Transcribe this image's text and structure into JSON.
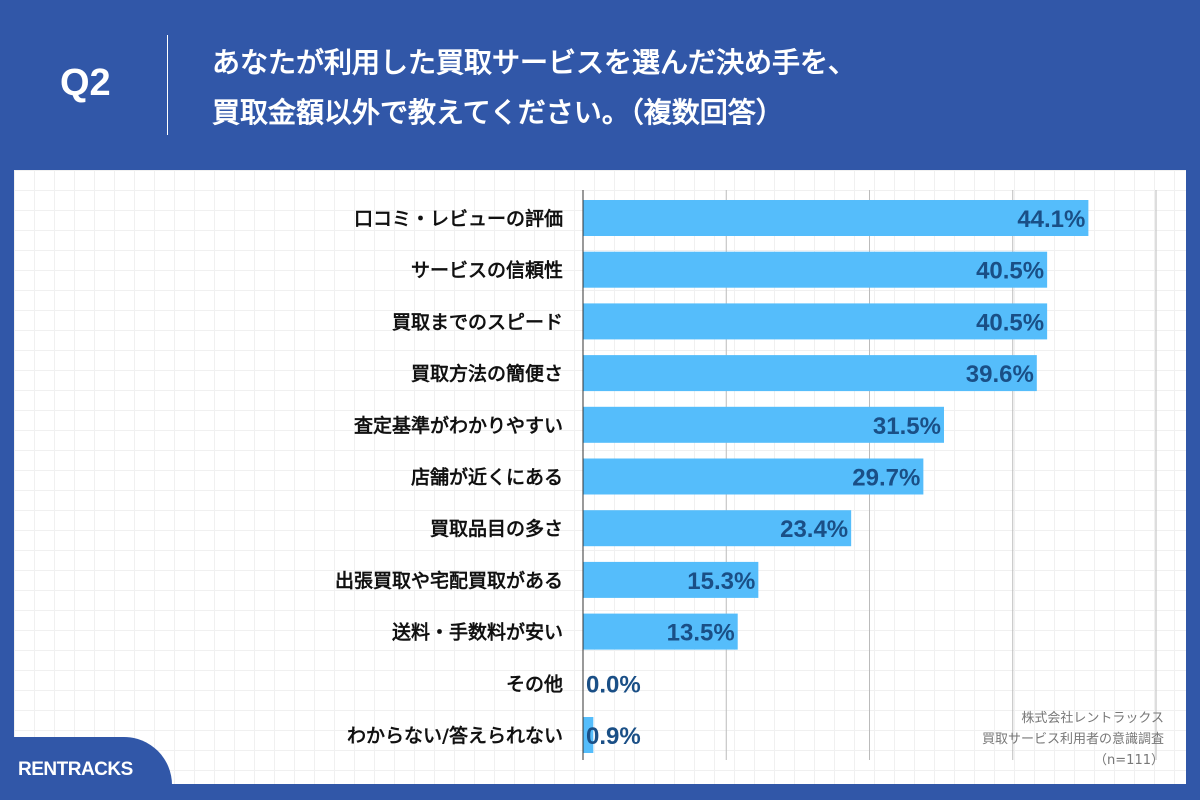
{
  "header": {
    "q_label": "Q2",
    "title_line1": "あなたが利用した買取サービスを選んだ決め手を、",
    "title_line2": "買取金額以外で教えてください。（複数回答）"
  },
  "footer": {
    "logo": "RENTRACKS",
    "source_line1": "株式会社レントラックス",
    "source_line2": "買取サービス利用者の意識調査",
    "source_line3": "（n=111）"
  },
  "colors": {
    "background": "#3157a8",
    "bar": "#55bdfb",
    "value_label": "#1a4f86"
  },
  "chart_data": {
    "type": "bar",
    "orientation": "horizontal",
    "xlim": [
      0,
      50
    ],
    "grid": true,
    "gridline_step": 12.5,
    "unit": "%",
    "categories": [
      "口コミ・レビューの評価",
      "サービスの信頼性",
      "買取までのスピード",
      "買取方法の簡便さ",
      "査定基準がわかりやすい",
      "店舗が近くにある",
      "買取品目の多さ",
      "出張買取や宅配買取がある",
      "送料・手数料が安い",
      "その他",
      "わからない/答えられない"
    ],
    "values": [
      44.1,
      40.5,
      40.5,
      39.6,
      31.5,
      29.7,
      23.4,
      15.3,
      13.5,
      0.0,
      0.9
    ],
    "value_labels": [
      "44.1%",
      "40.5%",
      "40.5%",
      "39.6%",
      "31.5%",
      "29.7%",
      "23.4%",
      "15.3%",
      "13.5%",
      "0.0%",
      "0.9%"
    ]
  }
}
